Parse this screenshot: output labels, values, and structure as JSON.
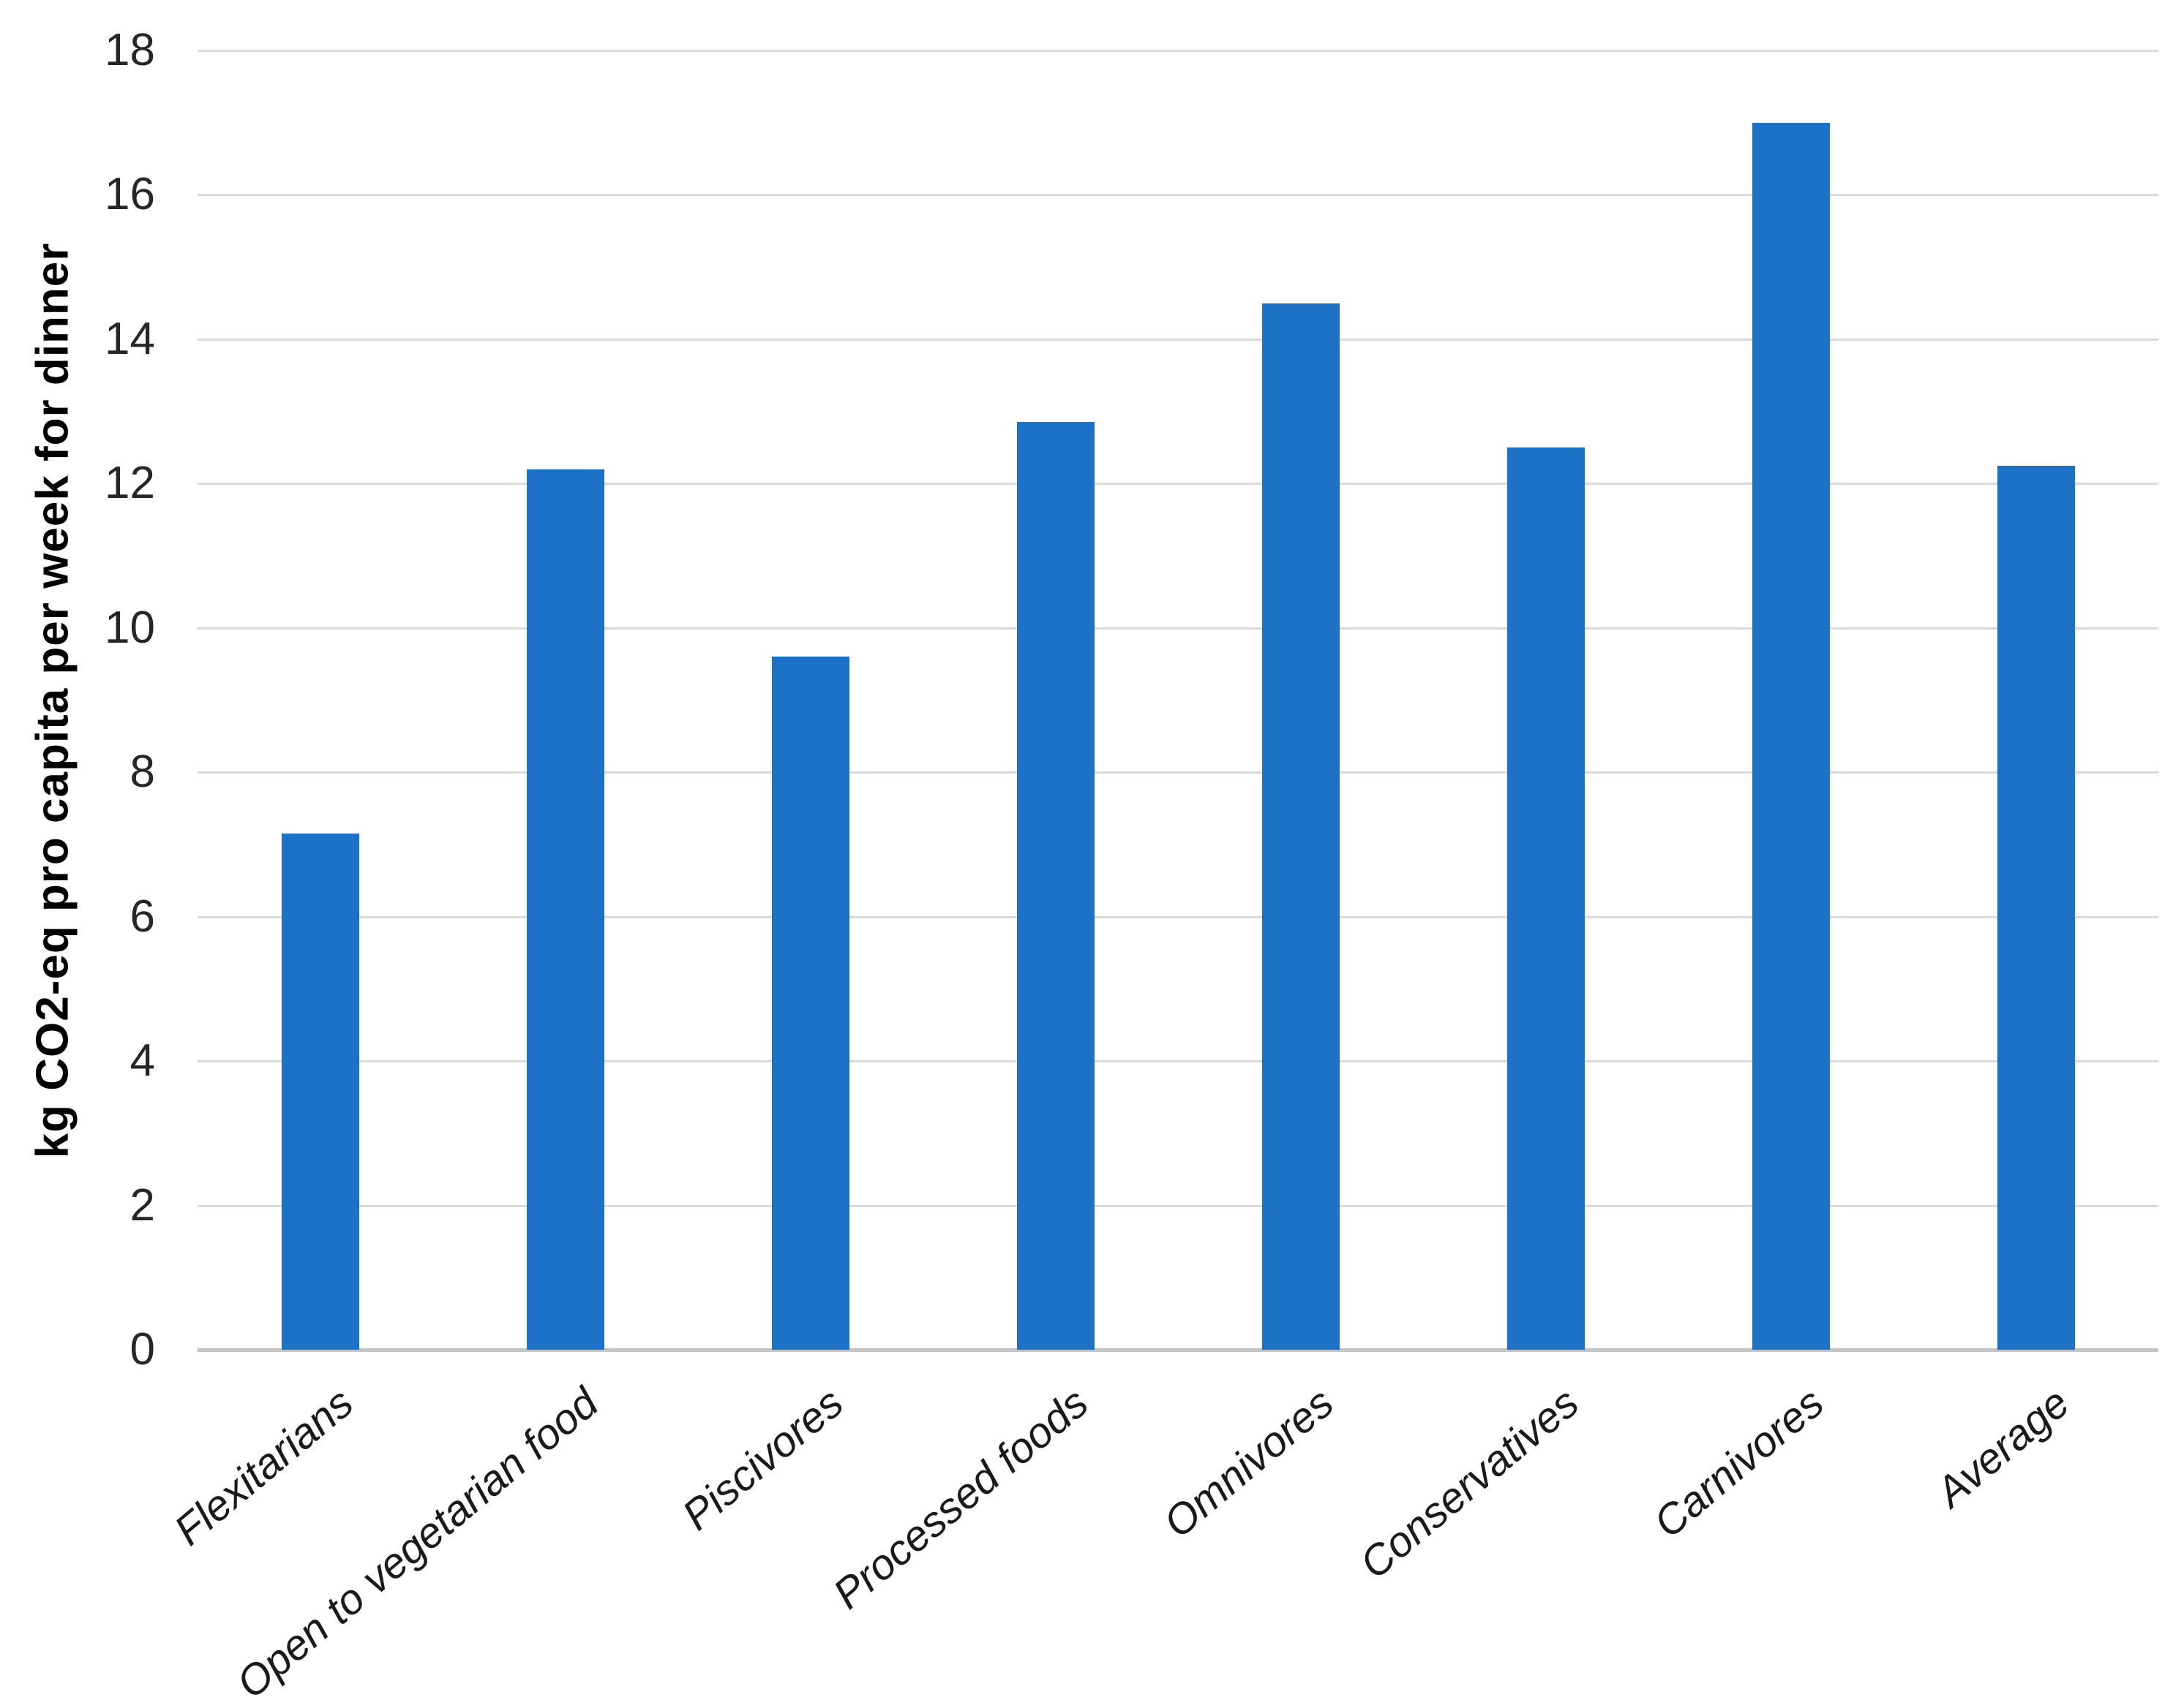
{
  "chart_data": {
    "type": "bar",
    "title": "",
    "xlabel": "",
    "ylabel": "kg CO2-eq pro capita per week for dinner",
    "categories": [
      "Flexitarians",
      "Open to vegetarian food",
      "Piscivores",
      "Processed foods",
      "Omnivores",
      "Conservatives",
      "Carnivores",
      "Average"
    ],
    "values": [
      7.15,
      12.2,
      9.6,
      12.85,
      14.5,
      12.5,
      17.0,
      12.25
    ],
    "ylim": [
      0,
      18
    ],
    "yticks": [
      0,
      2,
      4,
      6,
      8,
      10,
      12,
      14,
      16,
      18
    ],
    "grid": "horizontal",
    "legend": "none",
    "colors": {
      "bar": "#1b72c6",
      "gridline": "#d9d9d9",
      "baseline": "#c3c3c3",
      "tick_text": "#262626",
      "category_text": "#1a1a1a"
    }
  }
}
